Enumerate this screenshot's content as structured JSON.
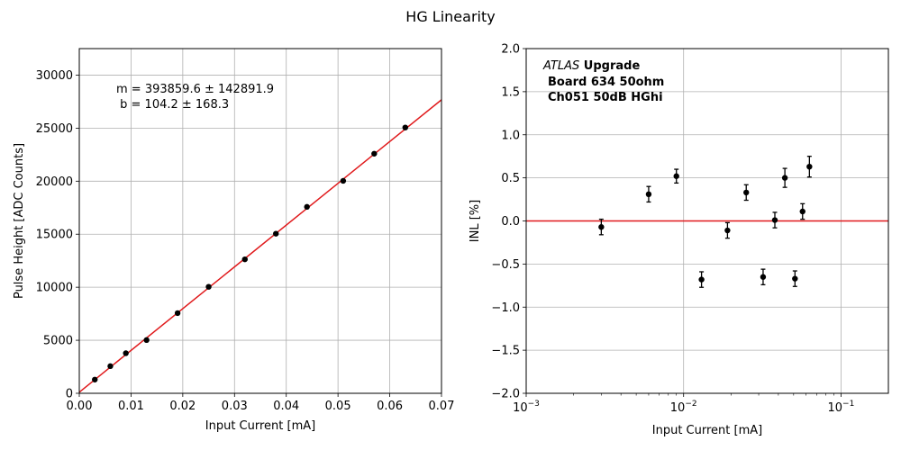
{
  "figure_title": "HG Linearity",
  "colors": {
    "fit_line": "#e0191b",
    "points": "#000000",
    "grid": "#b0b0b0"
  },
  "chart_data": [
    {
      "type": "scatter",
      "xlabel": "Input Current [mA]",
      "ylabel": "Pulse Height [ADC Counts]",
      "xlim": [
        0,
        0.07
      ],
      "ylim": [
        0,
        32500
      ],
      "xticks": [
        0.0,
        0.01,
        0.02,
        0.03,
        0.04,
        0.05,
        0.06,
        0.07
      ],
      "xtick_labels": [
        "0.00",
        "0.01",
        "0.02",
        "0.03",
        "0.04",
        "0.05",
        "0.06",
        "0.07"
      ],
      "yticks": [
        0,
        5000,
        10000,
        15000,
        20000,
        25000,
        30000
      ],
      "ytick_labels": [
        "0",
        "5000",
        "10000",
        "15000",
        "20000",
        "25000",
        "30000"
      ],
      "grid": true,
      "points": [
        {
          "x": 0.003,
          "y": 1290
        },
        {
          "x": 0.006,
          "y": 2560
        },
        {
          "x": 0.009,
          "y": 3780
        },
        {
          "x": 0.013,
          "y": 5020
        },
        {
          "x": 0.019,
          "y": 7560
        },
        {
          "x": 0.025,
          "y": 10040
        },
        {
          "x": 0.032,
          "y": 12630
        },
        {
          "x": 0.038,
          "y": 15050
        },
        {
          "x": 0.044,
          "y": 17580
        },
        {
          "x": 0.051,
          "y": 20030
        },
        {
          "x": 0.057,
          "y": 22590
        },
        {
          "x": 0.063,
          "y": 25060
        }
      ],
      "fit": {
        "slope": 393859.6,
        "intercept": 104.2
      },
      "annotation": [
        "m = 393859.6 ± 142891.9",
        " b = 104.2 ± 168.3"
      ]
    },
    {
      "type": "scatter",
      "xlabel": "Input Current [mA]",
      "ylabel": "INL [%]",
      "xscale": "log",
      "xlim": [
        0.001,
        0.2
      ],
      "ylim": [
        -2.0,
        2.0
      ],
      "xticks": [
        0.001,
        0.01,
        0.1
      ],
      "xtick_labels": [
        {
          "base": "10",
          "exp": "−3"
        },
        {
          "base": "10",
          "exp": "−2"
        },
        {
          "base": "10",
          "exp": "−1"
        }
      ],
      "yticks": [
        -2.0,
        -1.5,
        -1.0,
        -0.5,
        0.0,
        0.5,
        1.0,
        1.5,
        2.0
      ],
      "ytick_labels": [
        "−2.0",
        "−1.5",
        "−1.0",
        "−0.5",
        "0.0",
        "0.5",
        "1.0",
        "1.5",
        "2.0"
      ],
      "grid": true,
      "reference_line": 0.0,
      "points": [
        {
          "x": 0.003,
          "y": -0.07,
          "err": 0.09
        },
        {
          "x": 0.006,
          "y": 0.31,
          "err": 0.09
        },
        {
          "x": 0.009,
          "y": 0.52,
          "err": 0.08
        },
        {
          "x": 0.013,
          "y": -0.68,
          "err": 0.09
        },
        {
          "x": 0.019,
          "y": -0.11,
          "err": 0.09
        },
        {
          "x": 0.025,
          "y": 0.33,
          "err": 0.09
        },
        {
          "x": 0.032,
          "y": -0.65,
          "err": 0.09
        },
        {
          "x": 0.038,
          "y": 0.01,
          "err": 0.09
        },
        {
          "x": 0.044,
          "y": 0.5,
          "err": 0.11
        },
        {
          "x": 0.051,
          "y": -0.67,
          "err": 0.09
        },
        {
          "x": 0.057,
          "y": 0.11,
          "err": 0.09
        },
        {
          "x": 0.063,
          "y": 0.63,
          "err": 0.12
        }
      ],
      "annotation": {
        "line1_italic": "ATLAS",
        "line1_bold": " Upgrade",
        "line2": "Board 634 50ohm",
        "line3": "Ch051 50dB HGhi"
      }
    }
  ]
}
